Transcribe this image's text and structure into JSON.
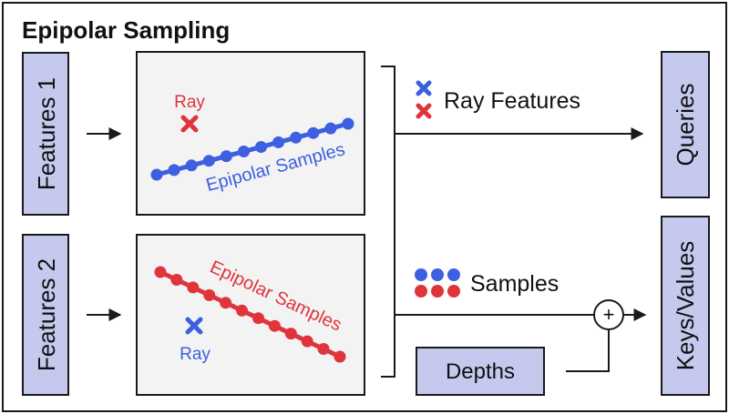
{
  "title": "Epipolar Sampling",
  "features": [
    "Features 1",
    "Features 2"
  ],
  "panel1": {
    "ray_label": "Ray",
    "line_label": "Epipolar Samples"
  },
  "panel2": {
    "ray_label": "Ray",
    "line_label": "Epipolar Samples"
  },
  "legend": {
    "ray_features": "Ray Features",
    "samples": "Samples"
  },
  "depths": "Depths",
  "plus_symbol": "+",
  "outputs": {
    "queries": "Queries",
    "keys_values": "Keys/Values"
  },
  "colors": {
    "blue": "#3d5fe0",
    "red": "#e0343c",
    "box_fill": "#c5c9ee",
    "panel_fill": "#f3f3f3",
    "stroke": "#1a1a1a"
  }
}
